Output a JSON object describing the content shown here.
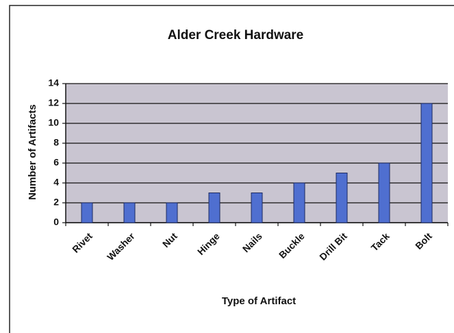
{
  "chart_data": {
    "type": "bar",
    "title": "Alder Creek Hardware",
    "x_label": "Type of Artifact",
    "y_label": "Number of Artifacts",
    "categories": [
      "Rivet",
      "Washer",
      "Nut",
      "Hinge",
      "Nails",
      "Buckle",
      "Drill Bit",
      "Tack",
      "Bolt"
    ],
    "values": [
      2,
      2,
      2,
      3,
      3,
      4,
      5,
      6,
      12
    ],
    "color": "#4f6fd0",
    "ylim": [
      0,
      14
    ],
    "yticks": [
      0,
      2,
      4,
      6,
      8,
      10,
      12,
      14
    ],
    "grid": true
  }
}
